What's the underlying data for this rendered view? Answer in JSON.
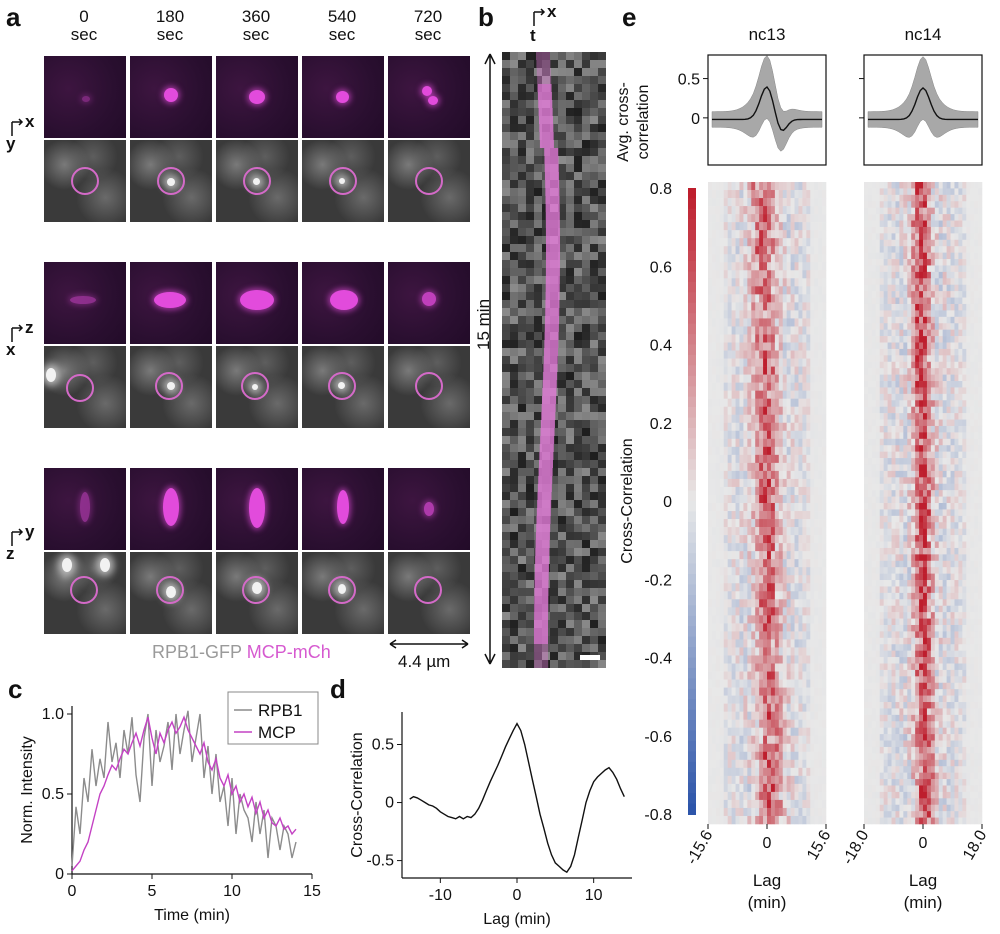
{
  "panel_labels": {
    "a": "a",
    "b": "b",
    "c": "c",
    "d": "d",
    "e": "e"
  },
  "panel_a": {
    "timepoints": [
      {
        "value": "0",
        "unit": "sec"
      },
      {
        "value": "180",
        "unit": "sec"
      },
      {
        "value": "360",
        "unit": "sec"
      },
      {
        "value": "540",
        "unit": "sec"
      },
      {
        "value": "720",
        "unit": "sec"
      }
    ],
    "view_axes": [
      {
        "horizontal": "x",
        "vertical": "y"
      },
      {
        "horizontal": "z",
        "vertical": "x"
      },
      {
        "horizontal": "y",
        "vertical": "z"
      }
    ],
    "legend_rpb1": "RPB1-GFP",
    "legend_mcp": "MCP-mCh",
    "legend_rpb1_color": "#9a9a9a",
    "legend_mcp_color": "#d65ad0",
    "scale_bar_label": "4.4 µm"
  },
  "panel_b": {
    "axis_horizontal": "x",
    "axis_vertical": "t",
    "duration_label": "15 min"
  },
  "chart_data": [
    {
      "id": "c",
      "type": "line",
      "xlabel": "Time (min)",
      "ylabel": "Norm. Intensity",
      "xlim": [
        0,
        15
      ],
      "ylim": [
        0,
        1.05
      ],
      "xticks": [
        0,
        5,
        10,
        15
      ],
      "yticks": [
        0,
        0.5,
        1.0
      ],
      "ytick_labels": [
        "0",
        "0.5",
        "1.0"
      ],
      "legend": "top-right",
      "series": [
        {
          "name": "RPB1",
          "color": "#8c8c8c",
          "x": [
            0,
            0.25,
            0.5,
            0.75,
            1,
            1.25,
            1.5,
            1.75,
            2,
            2.25,
            2.5,
            2.75,
            3,
            3.25,
            3.5,
            3.75,
            4,
            4.25,
            4.5,
            4.75,
            5,
            5.25,
            5.5,
            5.75,
            6,
            6.25,
            6.5,
            6.75,
            7,
            7.25,
            7.5,
            7.75,
            8,
            8.25,
            8.5,
            8.75,
            9,
            9.25,
            9.5,
            9.75,
            10,
            10.25,
            10.5,
            10.75,
            11,
            11.25,
            11.5,
            11.75,
            12,
            12.25,
            12.5,
            12.75,
            13,
            13.25,
            13.5,
            13.75,
            14
          ],
          "y": [
            0.05,
            0.42,
            0.25,
            0.6,
            0.45,
            0.78,
            0.55,
            0.72,
            0.6,
            0.95,
            0.7,
            0.82,
            0.6,
            0.9,
            0.75,
            0.98,
            0.62,
            0.45,
            0.85,
            1.0,
            0.55,
            0.9,
            0.7,
            0.8,
            0.95,
            0.65,
            1.0,
            0.75,
            0.9,
            1.02,
            0.7,
            0.85,
            1.0,
            0.6,
            0.8,
            0.5,
            0.75,
            0.45,
            0.55,
            0.3,
            0.6,
            0.25,
            0.5,
            0.4,
            0.35,
            0.2,
            0.45,
            0.25,
            0.4,
            0.1,
            0.35,
            0.3,
            0.15,
            0.3,
            0.25,
            0.1,
            0.2
          ]
        },
        {
          "name": "MCP",
          "color": "#c442c4",
          "x": [
            0,
            0.25,
            0.5,
            0.75,
            1,
            1.25,
            1.5,
            1.75,
            2,
            2.25,
            2.5,
            2.75,
            3,
            3.25,
            3.5,
            3.75,
            4,
            4.25,
            4.5,
            4.75,
            5,
            5.25,
            5.5,
            5.75,
            6,
            6.25,
            6.5,
            6.75,
            7,
            7.25,
            7.5,
            7.75,
            8,
            8.25,
            8.5,
            8.75,
            9,
            9.25,
            9.5,
            9.75,
            10,
            10.25,
            10.5,
            10.75,
            11,
            11.25,
            11.5,
            11.75,
            12,
            12.25,
            12.5,
            12.75,
            13,
            13.25,
            13.5,
            13.75,
            14
          ],
          "y": [
            0.02,
            0.05,
            0.08,
            0.15,
            0.2,
            0.3,
            0.4,
            0.5,
            0.55,
            0.62,
            0.68,
            0.65,
            0.72,
            0.78,
            0.75,
            0.82,
            0.88,
            0.8,
            0.9,
            0.98,
            0.85,
            0.75,
            0.88,
            0.82,
            0.9,
            0.95,
            0.88,
            0.92,
            0.98,
            0.9,
            0.85,
            0.8,
            0.75,
            0.82,
            0.7,
            0.65,
            0.72,
            0.6,
            0.55,
            0.62,
            0.5,
            0.55,
            0.45,
            0.5,
            0.42,
            0.48,
            0.38,
            0.45,
            0.35,
            0.4,
            0.32,
            0.3,
            0.35,
            0.28,
            0.3,
            0.25,
            0.28
          ]
        }
      ]
    },
    {
      "id": "d",
      "type": "line",
      "xlabel": "Lag (min)",
      "ylabel": "Cross-Correlation",
      "xlim": [
        -15,
        15
      ],
      "ylim": [
        -0.65,
        0.78
      ],
      "xticks": [
        -10,
        0,
        10
      ],
      "yticks": [
        -0.5,
        0,
        0.5
      ],
      "series": [
        {
          "name": "Cross-correlation",
          "color": "#111111",
          "x": [
            -14,
            -13.5,
            -13,
            -12.5,
            -12,
            -11.5,
            -11,
            -10.5,
            -10,
            -9.5,
            -9,
            -8.5,
            -8,
            -7.5,
            -7,
            -6.5,
            -6,
            -5.5,
            -5,
            -4.5,
            -4,
            -3.5,
            -3,
            -2.5,
            -2,
            -1.5,
            -1,
            -0.5,
            0,
            0.5,
            1,
            1.5,
            2,
            2.5,
            3,
            3.5,
            4,
            4.5,
            5,
            5.5,
            6,
            6.5,
            7,
            7.5,
            8,
            8.5,
            9,
            9.5,
            10,
            10.5,
            11,
            11.5,
            12,
            12.5,
            13,
            13.5,
            14
          ],
          "y": [
            0.03,
            0.05,
            0.04,
            0.02,
            0.0,
            -0.02,
            -0.03,
            -0.05,
            -0.08,
            -0.1,
            -0.12,
            -0.13,
            -0.14,
            -0.12,
            -0.14,
            -0.12,
            -0.13,
            -0.1,
            -0.05,
            0.02,
            0.1,
            0.18,
            0.25,
            0.32,
            0.4,
            0.48,
            0.55,
            0.62,
            0.68,
            0.62,
            0.5,
            0.35,
            0.2,
            0.05,
            -0.1,
            -0.22,
            -0.35,
            -0.45,
            -0.52,
            -0.55,
            -0.58,
            -0.6,
            -0.55,
            -0.45,
            -0.3,
            -0.15,
            0.0,
            0.1,
            0.18,
            0.22,
            0.25,
            0.28,
            0.3,
            0.26,
            0.2,
            0.12,
            0.05
          ]
        }
      ]
    },
    {
      "id": "e",
      "type": "heatmap",
      "colorbar_label": "Cross-Correlation",
      "colorbar_range": [
        -0.8,
        0.8
      ],
      "colorbar_ticks": [
        -0.8,
        -0.6,
        -0.4,
        -0.2,
        0,
        0.2,
        0.4,
        0.6,
        0.8
      ],
      "colorbar_tick_labels": [
        "-0.8",
        "-0.6",
        "-0.4",
        "-0.2",
        "0",
        "0.2",
        "0.4",
        "0.6",
        "0.8"
      ],
      "avg_ylabel": "Avg. cross-correlation",
      "avg_yticks": [
        0,
        0.5
      ],
      "subplots": [
        {
          "title": "nc13",
          "xlabel": "Lag (min)",
          "xlim": [
            -15.6,
            15.6
          ],
          "xticks": [
            -15.6,
            0,
            15.6
          ],
          "xtick_labels": [
            "-15.6",
            "0",
            "15.6"
          ],
          "rows": 80,
          "cols": 30,
          "peak_width": 2.2,
          "peak_strength": 0.55
        },
        {
          "title": "nc14",
          "xlabel": "Lag (min)",
          "xlim": [
            -18.0,
            18.0
          ],
          "xticks": [
            -18.0,
            0,
            18.0
          ],
          "xtick_labels": [
            "-18.0",
            "0",
            "18.0"
          ],
          "rows": 100,
          "cols": 30,
          "peak_width": 1.6,
          "peak_strength": 0.7
        }
      ]
    }
  ]
}
